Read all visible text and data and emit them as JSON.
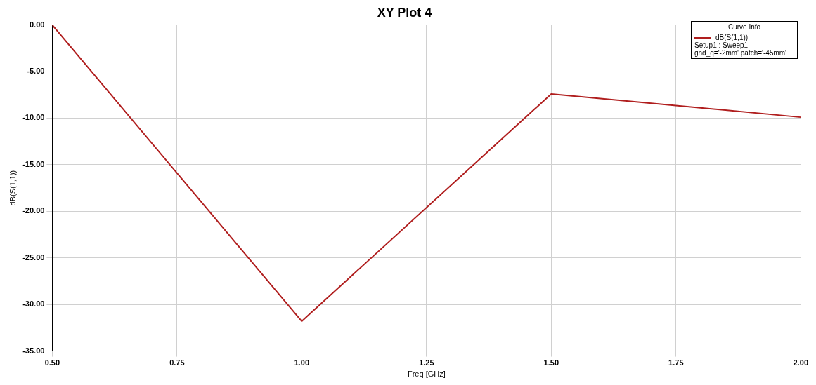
{
  "chart_data": {
    "type": "line",
    "title": "XY Plot 4",
    "xlabel": "Freq [GHz]",
    "ylabel": "dB(S(1,1))",
    "legend_title": "Curve Info",
    "x": [
      0.5,
      1.0,
      1.5,
      2.0
    ],
    "series": [
      {
        "name": "dB(S(1,1))",
        "color": "#b01e1e",
        "values": [
          0,
          -31.8,
          -7.4,
          -9.9
        ]
      }
    ],
    "xlim": [
      0.5,
      2.0
    ],
    "xticks": [
      {
        "value": 0.5,
        "label": "0.50"
      },
      {
        "value": 0.75,
        "label": "0.75"
      },
      {
        "value": 1.0,
        "label": "1.00"
      },
      {
        "value": 1.25,
        "label": "1.25"
      },
      {
        "value": 1.5,
        "label": "1.50"
      },
      {
        "value": 1.75,
        "label": "1.75"
      },
      {
        "value": 2.0,
        "label": "2.00"
      }
    ],
    "ylim": [
      -35,
      0
    ],
    "yticks": [
      {
        "value": 0,
        "label": "0.00"
      },
      {
        "value": -5,
        "label": "-5.00"
      },
      {
        "value": -10,
        "label": "-10.00"
      },
      {
        "value": -15,
        "label": "-15.00"
      },
      {
        "value": -20,
        "label": "-20.00"
      },
      {
        "value": -25,
        "label": "-25.00"
      },
      {
        "value": -30,
        "label": "-30.00"
      },
      {
        "value": -35,
        "label": "-35.00"
      }
    ],
    "grid": true,
    "legend": "top right",
    "marker": "none",
    "line_style": "solid",
    "annotations": [
      "Setup1 : Sweep1",
      "gnd_q='-2mm' patch='-45mm'"
    ]
  }
}
